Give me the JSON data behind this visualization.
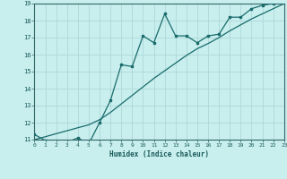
{
  "xlabel": "Humidex (Indice chaleur)",
  "bg_color": "#c8eeee",
  "grid_color": "#b0d8d8",
  "line_color": "#1a6b6b",
  "xlim": [
    0,
    23
  ],
  "ylim": [
    11,
    19
  ],
  "xticks": [
    0,
    1,
    2,
    3,
    4,
    5,
    6,
    7,
    8,
    9,
    10,
    11,
    12,
    13,
    14,
    15,
    16,
    17,
    18,
    19,
    20,
    21,
    22,
    23
  ],
  "yticks": [
    11,
    12,
    13,
    14,
    15,
    16,
    17,
    18,
    19
  ],
  "data_x": [
    0,
    1,
    2,
    3,
    4,
    5,
    6,
    7,
    8,
    9,
    10,
    11,
    12,
    13,
    14,
    15,
    16,
    17,
    18,
    19,
    20,
    21,
    22,
    23
  ],
  "data_y": [
    11.3,
    10.95,
    10.85,
    10.85,
    11.1,
    10.75,
    12.0,
    13.3,
    15.4,
    15.3,
    17.1,
    16.7,
    18.4,
    17.1,
    17.1,
    16.7,
    17.1,
    17.2,
    18.2,
    18.2,
    18.7,
    18.9,
    19.0,
    19.05
  ],
  "ref_x": [
    0,
    1,
    2,
    3,
    4,
    5,
    6,
    7,
    8,
    9,
    10,
    11,
    12,
    13,
    14,
    15,
    16,
    17,
    18,
    19,
    20,
    21,
    22,
    23
  ],
  "ref_y": [
    11.0,
    11.17,
    11.35,
    11.52,
    11.7,
    11.87,
    12.17,
    12.6,
    13.1,
    13.6,
    14.1,
    14.6,
    15.05,
    15.5,
    15.95,
    16.35,
    16.65,
    17.0,
    17.4,
    17.75,
    18.1,
    18.4,
    18.7,
    19.0
  ]
}
